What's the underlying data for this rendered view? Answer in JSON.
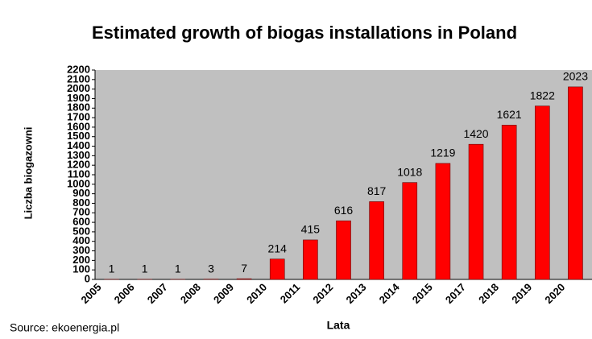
{
  "chart_data": {
    "type": "bar",
    "title": "Estimated growth of biogas installations in Poland",
    "x_label": "Lata",
    "y_label": "Liczba biogazowni",
    "source": "Source: ekoenergia.pl",
    "categories": [
      "2005",
      "2006",
      "2007",
      "2008",
      "2009",
      "2010",
      "2011",
      "2012",
      "2013",
      "2014",
      "2015",
      "2017",
      "2018",
      "2019",
      "2020"
    ],
    "values": [
      1,
      1,
      1,
      3,
      7,
      214,
      415,
      616,
      817,
      1018,
      1219,
      1420,
      1621,
      1822,
      2023
    ],
    "color": "#ff0000",
    "ylim": [
      0,
      2200
    ],
    "yticks": [
      0,
      100,
      200,
      300,
      400,
      500,
      600,
      700,
      800,
      900,
      1000,
      1100,
      1200,
      1300,
      1400,
      1500,
      1600,
      1700,
      1800,
      1900,
      2000,
      2100,
      2200
    ],
    "grid": false
  }
}
